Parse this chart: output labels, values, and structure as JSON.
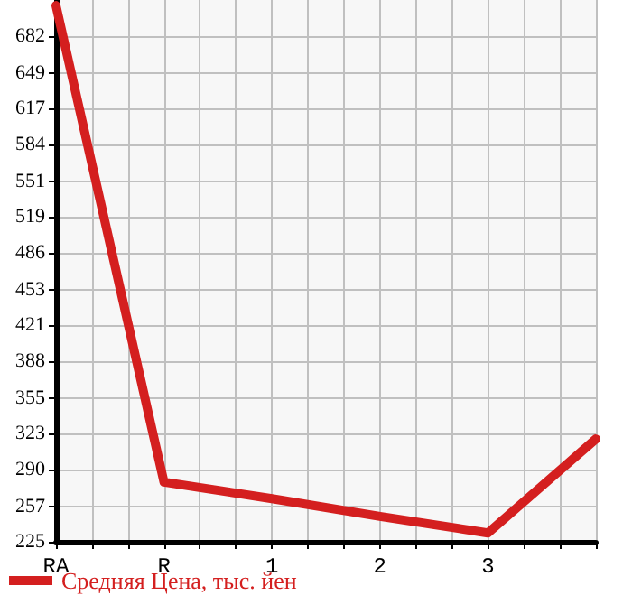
{
  "chart_data": {
    "type": "line",
    "categories": [
      "RA",
      "R",
      "1",
      "2",
      "3",
      null
    ],
    "series": [
      {
        "name": "Средняя Цена, тыс. йен",
        "color": "#d41f1f",
        "values": [
          710,
          279,
          264,
          248,
          233,
          318
        ]
      }
    ],
    "ylim": [
      225,
      715
    ],
    "yticks": [
      225,
      257,
      290,
      323,
      355,
      388,
      421,
      453,
      486,
      519,
      551,
      584,
      617,
      649,
      682
    ],
    "grid": true,
    "legend": "bottom",
    "marker": "none",
    "line_style": "solid"
  }
}
